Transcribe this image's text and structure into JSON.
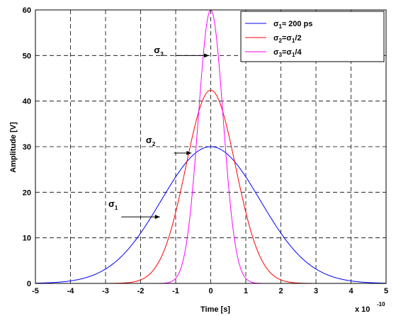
{
  "chart_data": {
    "type": "line",
    "xlabel": "Time [s]",
    "ylabel": "Amplitude [V]",
    "x_multiplier": "x 10",
    "x_multiplier_exp": "-10",
    "xlim": [
      -5,
      5
    ],
    "ylim": [
      0,
      60
    ],
    "xticks": [
      "-5",
      "-4",
      "-3",
      "-2",
      "-1",
      "0",
      "1",
      "2",
      "3",
      "4",
      "5"
    ],
    "yticks": [
      "0",
      "10",
      "20",
      "30",
      "40",
      "50",
      "60"
    ],
    "grid": true,
    "legend_position": "top-right",
    "series": [
      {
        "legend": [
          {
            "t": "σ",
            "s": false
          },
          {
            "t": "1",
            "s": true
          },
          {
            "t": "≈ 200 ps",
            "s": false
          }
        ],
        "color": "#0000ff",
        "peak": 30,
        "sigma": 1.414,
        "x": [
          -5,
          -4,
          -3,
          -2,
          -1,
          0,
          1,
          2,
          3,
          4,
          5
        ],
        "y": [
          0.06,
          0.5,
          3.1,
          11.0,
          23.4,
          30.0,
          23.4,
          11.0,
          3.1,
          0.5,
          0.06
        ]
      },
      {
        "legend": [
          {
            "t": "σ",
            "s": false
          },
          {
            "t": "2",
            "s": true
          },
          {
            "t": "=σ",
            "s": false
          },
          {
            "t": "1",
            "s": true
          },
          {
            "t": "/2",
            "s": false
          }
        ],
        "color": "#ff0000",
        "peak": 42.4,
        "sigma": 0.707,
        "x": [
          -3,
          -2,
          -1.5,
          -1,
          -0.5,
          0,
          0.5,
          1,
          1.5,
          2,
          3
        ],
        "y": [
          0.0,
          0.8,
          4.7,
          15.6,
          33.1,
          42.4,
          33.1,
          15.6,
          4.7,
          0.8,
          0.0
        ]
      },
      {
        "legend": [
          {
            "t": "σ",
            "s": false
          },
          {
            "t": "3",
            "s": true
          },
          {
            "t": "=σ",
            "s": false
          },
          {
            "t": "1",
            "s": true
          },
          {
            "t": "/4",
            "s": false
          }
        ],
        "color": "#ff00ff",
        "peak": 60,
        "sigma": 0.354,
        "x": [
          -1.5,
          -1,
          -0.75,
          -0.5,
          -0.25,
          0,
          0.25,
          0.5,
          0.75,
          1,
          1.5
        ],
        "y": [
          0.0,
          1.1,
          6.6,
          22.1,
          46.8,
          60.0,
          46.8,
          22.1,
          6.6,
          1.1,
          0.0
        ]
      }
    ],
    "annotations": [
      {
        "main": "σ",
        "sub": "3",
        "x": -1.62,
        "y": 50.5,
        "ax0": -1.0,
        "ax1": -0.05,
        "ay": 50.0
      },
      {
        "main": "σ",
        "sub": "2",
        "x": -1.85,
        "y": 30.8,
        "ax0": -1.05,
        "ax1": -0.55,
        "ay": 28.6
      },
      {
        "main": "σ",
        "sub": "1",
        "x": -2.92,
        "y": 16.8,
        "ax0": -2.55,
        "ax1": -1.45,
        "ay": 14.6
      }
    ]
  }
}
